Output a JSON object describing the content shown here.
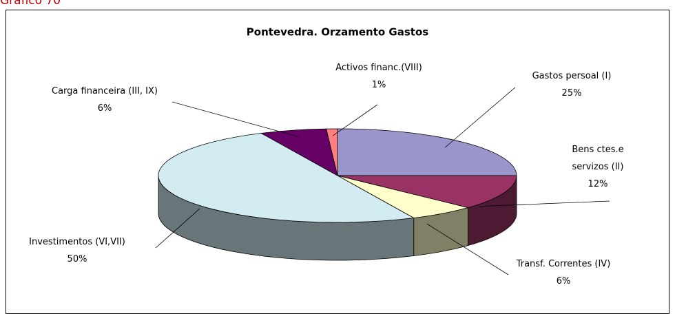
{
  "caption": "Gráfico 70",
  "chart_data": {
    "type": "pie3d",
    "title": "Pontevedra. Orzamento Gastos",
    "categories": [
      "Gastos persoal (I)",
      "Bens ctes.e servizos (II)",
      "Transf. Correntes (IV)",
      "Investimentos (VI,VII)",
      "Carga financeira (III, IX)",
      "Activos financ.(VIII)"
    ],
    "values": [
      25,
      12,
      6,
      50,
      6,
      1
    ],
    "value_labels": [
      "25%",
      "12%",
      "6%",
      "50%",
      "6%",
      "1%"
    ],
    "colors": [
      "#9a96cc",
      "#993366",
      "#ffffcc",
      "#d2ecf2",
      "#660066",
      "#ff8080"
    ]
  }
}
